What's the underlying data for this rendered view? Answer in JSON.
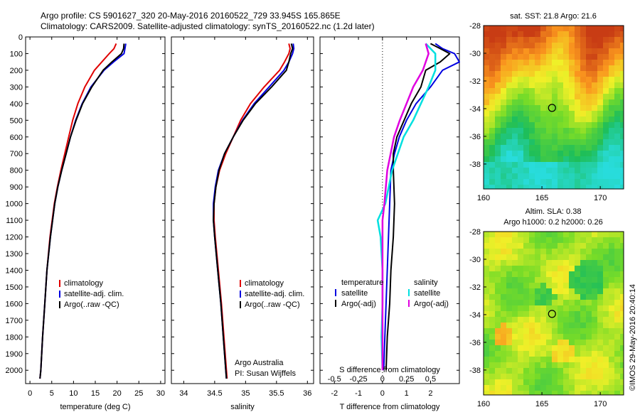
{
  "header": {
    "line1": "Argo profile: CS 5901627_320 20-May-2016 20160522_729 33.945S 165.865E",
    "line2": "Climatology: CARS2009. Satellite-adjusted climatology: synTS_20160522.nc (1.2d later)"
  },
  "side_text": "©IMOS 29-May-2016 20:40:14",
  "chart_data": [
    {
      "type": "line",
      "panel": "temperature",
      "xlabel": "temperature (deg C)",
      "xlim": [
        -1,
        31
      ],
      "ylim": [
        0,
        2080
      ],
      "y_reversed": true,
      "xticks": [
        0,
        5,
        10,
        15,
        20,
        25,
        30
      ],
      "yticks": [
        0,
        100,
        200,
        300,
        400,
        500,
        600,
        700,
        800,
        900,
        1000,
        1100,
        1200,
        1300,
        1400,
        1500,
        1600,
        1700,
        1800,
        1900,
        2000
      ],
      "legend": [
        "climatology",
        "satellite-adj. clim.",
        "Argo(..raw -QC)"
      ],
      "legend_location": "lower-right",
      "colors": {
        "climatology": "#e00000",
        "satellite": "#0000e0",
        "argo": "#000000"
      },
      "series": [
        {
          "name": "climatology",
          "color": "#e00000",
          "depth": [
            40,
            70,
            100,
            150,
            200,
            300,
            400,
            500,
            600,
            700,
            800,
            900,
            1000,
            1200,
            1400,
            1600,
            1800,
            2000,
            2050
          ],
          "values": [
            19.8,
            19.3,
            18.2,
            16.5,
            14.8,
            12.6,
            11.0,
            9.8,
            8.9,
            8.0,
            7.1,
            6.3,
            5.6,
            4.6,
            3.9,
            3.4,
            2.9,
            2.5,
            2.3
          ]
        },
        {
          "name": "satellite-adj. clim.",
          "color": "#0000e0",
          "depth": [
            40,
            70,
            100,
            150,
            200,
            300,
            400,
            500,
            600,
            700,
            800,
            900,
            1000,
            1200,
            1400,
            1600,
            1800,
            2000,
            2050
          ],
          "values": [
            22.0,
            21.8,
            21.6,
            19.2,
            17.0,
            14.0,
            12.0,
            10.5,
            9.3,
            8.3,
            7.3,
            6.4,
            5.7,
            4.7,
            3.9,
            3.4,
            2.9,
            2.5,
            2.3
          ]
        },
        {
          "name": "Argo(..raw -QC)",
          "color": "#000000",
          "depth": [
            40,
            70,
            100,
            150,
            200,
            300,
            400,
            500,
            600,
            700,
            800,
            900,
            1000,
            1200,
            1400,
            1600,
            1800,
            2000,
            2050
          ],
          "values": [
            21.6,
            21.5,
            21.0,
            18.8,
            16.8,
            14.2,
            12.1,
            10.6,
            9.3,
            8.3,
            7.3,
            6.4,
            5.7,
            4.7,
            3.9,
            3.4,
            2.9,
            2.5,
            2.3
          ]
        }
      ]
    },
    {
      "type": "line",
      "panel": "salinity",
      "xlabel": "salinity",
      "xlim": [
        33.8,
        36.1
      ],
      "ylim": [
        0,
        2080
      ],
      "y_reversed": true,
      "xticks": [
        34,
        34.5,
        35,
        35.5,
        36
      ],
      "legend": [
        "climatology",
        "satellite-adj. clim.",
        "Argo(..raw -QC)"
      ],
      "legend_location": "lower-right",
      "annotation": [
        "Argo Australia",
        "PI: Susan Wijffels"
      ],
      "series": [
        {
          "name": "climatology",
          "color": "#e00000",
          "depth": [
            40,
            70,
            100,
            150,
            200,
            300,
            400,
            500,
            600,
            700,
            800,
            900,
            1000,
            1100,
            1200,
            1400,
            1600,
            1800,
            2000,
            2050
          ],
          "values": [
            35.7,
            35.72,
            35.7,
            35.63,
            35.55,
            35.3,
            35.08,
            34.92,
            34.8,
            34.68,
            34.58,
            34.52,
            34.49,
            34.49,
            34.51,
            34.56,
            34.61,
            34.65,
            34.69,
            34.7
          ]
        },
        {
          "name": "satellite-adj. clim.",
          "color": "#0000e0",
          "depth": [
            40,
            70,
            100,
            150,
            200,
            300,
            400,
            500,
            600,
            700,
            800,
            900,
            1000,
            1100,
            1200,
            1400,
            1600,
            1800,
            2000,
            2050
          ],
          "values": [
            35.77,
            35.78,
            35.76,
            35.7,
            35.62,
            35.38,
            35.14,
            34.95,
            34.8,
            34.66,
            34.56,
            34.51,
            34.48,
            34.48,
            34.5,
            34.55,
            34.6,
            34.64,
            34.68,
            34.69
          ]
        },
        {
          "name": "Argo(..raw -QC)",
          "color": "#000000",
          "depth": [
            40,
            70,
            100,
            150,
            200,
            300,
            400,
            500,
            600,
            700,
            800,
            900,
            1000,
            1100,
            1200,
            1400,
            1600,
            1800,
            2000,
            2050
          ],
          "values": [
            35.74,
            35.76,
            35.73,
            35.7,
            35.66,
            35.42,
            35.16,
            34.96,
            34.8,
            34.66,
            34.57,
            34.52,
            34.49,
            34.48,
            34.5,
            34.55,
            34.6,
            34.64,
            34.68,
            34.69
          ]
        }
      ]
    },
    {
      "type": "line",
      "panel": "difference",
      "xlabel": "T difference from climatology",
      "xlabel_top": "S difference from climatology",
      "xlim": [
        -2.6,
        3.2
      ],
      "ylim": [
        0,
        2080
      ],
      "y_reversed": true,
      "xticks": [
        -2,
        -1,
        0,
        1,
        2
      ],
      "sticks": [
        "-0.5",
        "-0.25",
        "0",
        "0.25",
        "0.5"
      ],
      "legend_temperature": {
        "heading": "temperature",
        "items": [
          "satellite",
          "Argo(-adj)"
        ]
      },
      "legend_salinity": {
        "heading": "salinity",
        "items": [
          "satellite",
          "Argo(-adj)"
        ]
      },
      "series": [
        {
          "name": "T satellite",
          "color": "#0000e0",
          "depth": [
            40,
            70,
            100,
            150,
            200,
            300,
            400,
            500,
            600,
            700,
            800,
            1000,
            1200,
            1400,
            1600,
            1800,
            2000
          ],
          "values": [
            2.2,
            2.5,
            3.0,
            3.2,
            2.5,
            2.0,
            1.4,
            1.0,
            0.7,
            0.5,
            0.35,
            0.3,
            0.25,
            0.2,
            0.15,
            0.1,
            0.05
          ]
        },
        {
          "name": "T Argo(-adj)",
          "color": "#000000",
          "depth": [
            40,
            70,
            100,
            150,
            200,
            300,
            400,
            500,
            600,
            700,
            800,
            1000,
            1200,
            1400,
            1600,
            1800,
            2000
          ],
          "values": [
            2.0,
            2.4,
            2.8,
            2.4,
            1.8,
            1.6,
            1.2,
            0.9,
            0.6,
            0.45,
            0.45,
            0.5,
            0.45,
            0.35,
            0.3,
            0.2,
            0.15
          ]
        },
        {
          "name": "S satellite",
          "color": "#00e0e0",
          "depth": [
            40,
            100,
            200,
            300,
            400,
            500,
            600,
            800,
            1000,
            1100,
            1200,
            1400,
            1600,
            1800,
            2000
          ],
          "values": [
            0.45,
            0.55,
            0.55,
            0.48,
            0.4,
            0.32,
            0.22,
            0.1,
            0.03,
            -0.05,
            -0.02,
            0.0,
            0.0,
            -0.01,
            0.0
          ]
        },
        {
          "name": "S Argo(-adj)",
          "color": "#e000e0",
          "depth": [
            40,
            100,
            200,
            300,
            400,
            500,
            600,
            800,
            1000,
            1100,
            1200,
            1400,
            1600,
            1800,
            2000
          ],
          "values": [
            0.45,
            0.48,
            0.42,
            0.32,
            0.25,
            0.18,
            0.12,
            0.05,
            0.02,
            0.0,
            0.0,
            0.0,
            0.0,
            0.0,
            0.0
          ]
        }
      ]
    },
    {
      "type": "heatmap",
      "panel": "sst-map",
      "title": "sat. SST: 21.8  Argo: 21.6",
      "xlim": [
        160,
        172
      ],
      "ylim": [
        -39.8,
        -28
      ],
      "xticks": [
        160,
        165,
        170
      ],
      "yticks": [
        -28,
        -30,
        -32,
        -34,
        -36,
        -38
      ],
      "marker": {
        "lon": 165.865,
        "lat": -33.945
      }
    },
    {
      "type": "heatmap",
      "panel": "sla-map",
      "title": "Altim. SLA: 0.38",
      "subtitle": "Argo h1000: 0.2  h2000: 0.26",
      "xlim": [
        160,
        172
      ],
      "ylim": [
        -39.8,
        -28
      ],
      "xticks": [
        160,
        165,
        170
      ],
      "yticks": [
        -28,
        -30,
        -32,
        -34,
        -36,
        -38
      ],
      "marker": {
        "lon": 165.865,
        "lat": -33.945
      }
    }
  ]
}
